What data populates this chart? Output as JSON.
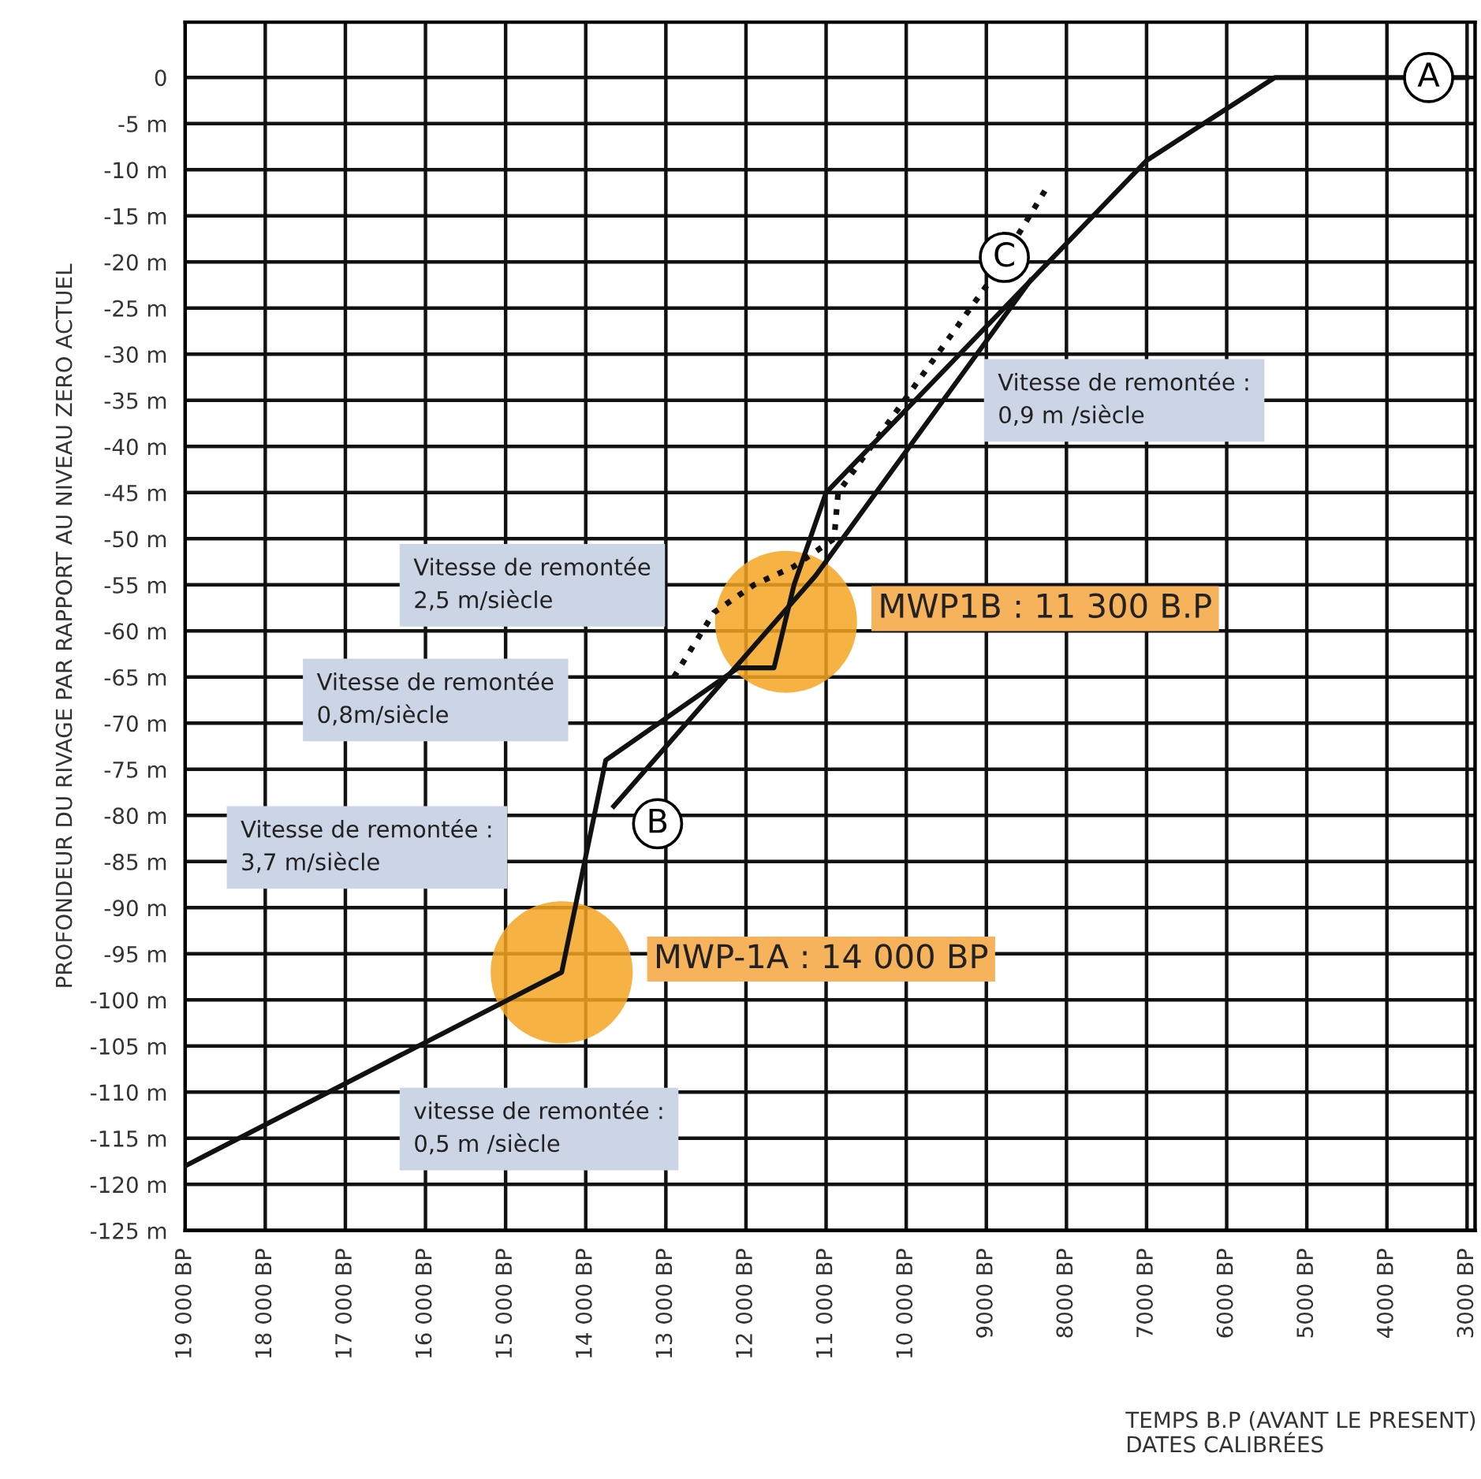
{
  "chart_data": {
    "type": "line",
    "xlabel": "TEMPS B.P (AVANT LE PRESENT)\nDATES CALIBRÉES",
    "ylabel": "PROFONDEUR DU RIVAGE PAR RAPPORT AU NIVEAU ZERO ACTUEL",
    "series": [
      {
        "name": "A",
        "color": "#111111",
        "line_style": "solid",
        "x": [
          19000,
          14300,
          13750,
          12100,
          11650,
          11400,
          11000,
          7000,
          5400,
          3000
        ],
        "values": [
          -118,
          -97,
          -74,
          -64,
          -64,
          -55,
          -45,
          -9,
          0,
          0
        ]
      },
      {
        "name": "B",
        "color": "#111111",
        "line_style": "solid",
        "x": [
          13650,
          11130,
          8450
        ],
        "values": [
          -79,
          -54,
          -22
        ]
      },
      {
        "name": "C",
        "color": "#111111",
        "line_style": "dotted",
        "x": [
          12900,
          12400,
          11900,
          11400,
          10900,
          10850,
          8950,
          8750,
          8600,
          8250
        ],
        "values": [
          -65,
          -58,
          -55,
          -53,
          -50,
          -45,
          -22,
          null,
          -17,
          -12
        ]
      }
    ],
    "annotations": [
      {
        "text": "MWP-1A : 14 000 BP",
        "x": 14300,
        "y": -97
      },
      {
        "text": "MWP1B : 11 300 B.P",
        "x": 11500,
        "y": -59
      },
      "Vitesse de remontée\n2,5 m/siècle",
      "Vitesse de remontée :\n0,9 m /siècle",
      "Vitesse de remontée\n0,8m/siècle",
      "Vitesse de remontée :\n3,7 m/siècle",
      "vitesse de remontée :\n0,5 m /siècle"
    ],
    "xlim": [
      19000,
      2900
    ],
    "ylim": [
      -125,
      6
    ],
    "xticks": [
      {
        "value": 19000,
        "label": "19 000 BP"
      },
      {
        "value": 18000,
        "label": "18 000 BP"
      },
      {
        "value": 17000,
        "label": "17 000 BP"
      },
      {
        "value": 16000,
        "label": "16 000 BP"
      },
      {
        "value": 15000,
        "label": "15 000 BP"
      },
      {
        "value": 14000,
        "label": "14 000 BP"
      },
      {
        "value": 13000,
        "label": "13 000 BP"
      },
      {
        "value": 12000,
        "label": "12 000 BP"
      },
      {
        "value": 11000,
        "label": "11 000 BP"
      },
      {
        "value": 10000,
        "label": "10 000 BP"
      },
      {
        "value": 9000,
        "label": "9000 BP"
      },
      {
        "value": 8000,
        "label": "8000 BP"
      },
      {
        "value": 7000,
        "label": "7000 BP"
      },
      {
        "value": 6000,
        "label": "6000 BP"
      },
      {
        "value": 5000,
        "label": "5000 BP"
      },
      {
        "value": 4000,
        "label": "4000 BP"
      },
      {
        "value": 3000,
        "label": "3000 BP"
      }
    ],
    "yticks": [
      0,
      {
        "value": -5,
        "label": "-5 m"
      },
      {
        "value": -10,
        "label": "-10 m"
      },
      {
        "value": -15,
        "label": "-15 m"
      },
      {
        "value": -20,
        "label": "-20 m"
      },
      {
        "value": -25,
        "label": "-25 m"
      },
      {
        "value": -30,
        "label": "-30 m"
      },
      {
        "value": -35,
        "label": "-35 m"
      },
      {
        "value": -40,
        "label": "-40 m"
      },
      {
        "value": -45,
        "label": "-45 m"
      },
      {
        "value": -50,
        "label": "-50 m"
      },
      {
        "value": -55,
        "label": "-55 m"
      },
      {
        "value": -60,
        "label": "-60 m"
      },
      {
        "value": -65,
        "label": "-65 m"
      },
      {
        "value": -70,
        "label": "-70 m"
      },
      {
        "value": -75,
        "label": "-75 m"
      },
      {
        "value": -80,
        "label": "-80 m"
      },
      {
        "value": -85,
        "label": "-85 m"
      },
      {
        "value": -90,
        "label": "-90 m"
      },
      {
        "value": -95,
        "label": "-95 m"
      },
      {
        "value": -100,
        "label": "-100 m"
      },
      {
        "value": -105,
        "label": "-105 m"
      },
      {
        "value": -110,
        "label": "-110 m"
      },
      {
        "value": -115,
        "label": "-115 m"
      },
      {
        "value": -120,
        "label": "-120 m"
      },
      {
        "value": -125,
        "label": "-125 m"
      }
    ],
    "grid": true,
    "legend": false,
    "marker": "none"
  }
}
